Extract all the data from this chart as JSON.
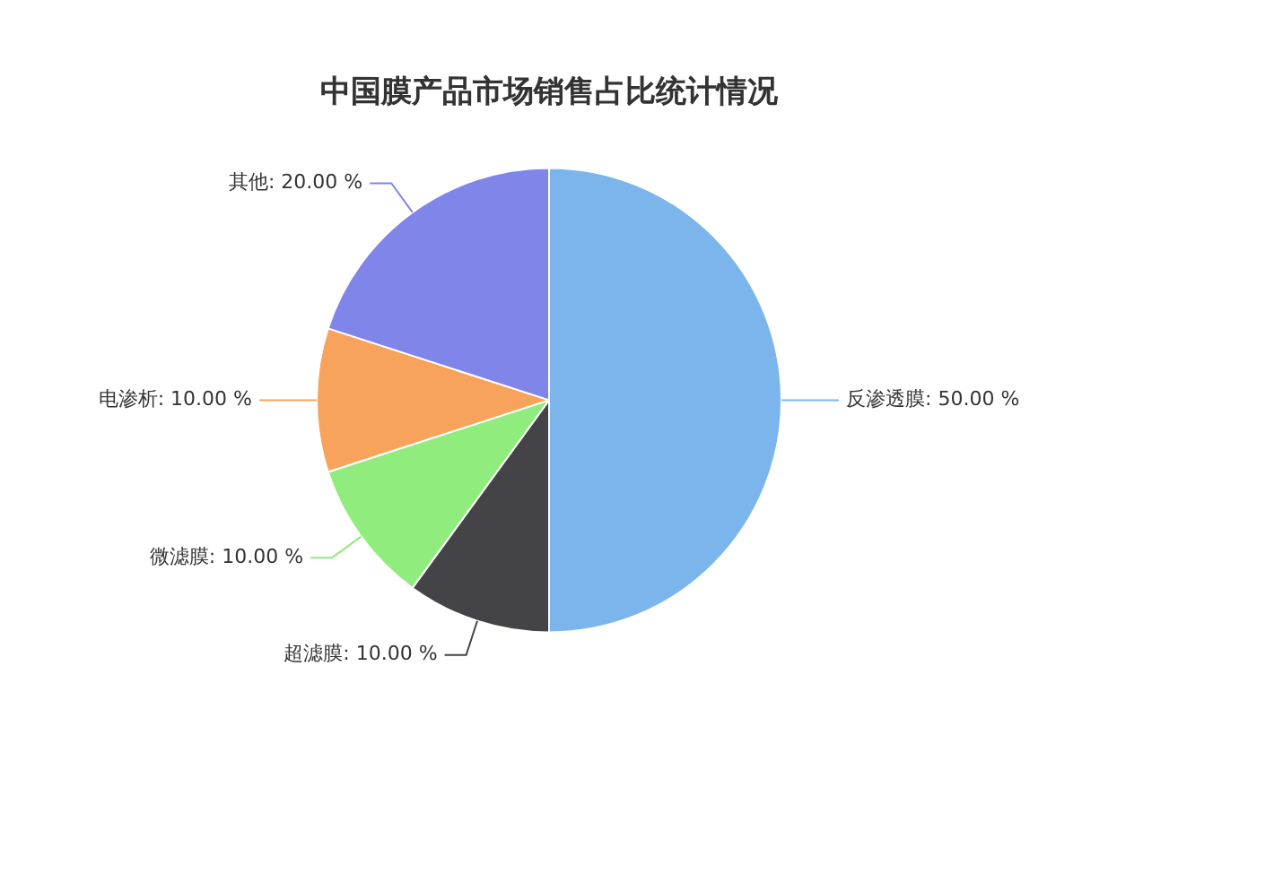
{
  "chart_data": {
    "type": "pie",
    "title": "中国膜产品市场销售占比统计情况",
    "categories": [
      "反渗透膜",
      "超滤膜",
      "微滤膜",
      "电渗析",
      "其他"
    ],
    "values": [
      50,
      10,
      10,
      10,
      20
    ],
    "value_labels": [
      "50.00 %",
      "10.00 %",
      "10.00 %",
      "10.00 %",
      "20.00 %"
    ],
    "colors": [
      "#7cb5ec",
      "#434348",
      "#90ed7d",
      "#f7a35c",
      "#8085e9"
    ],
    "legend": false
  }
}
